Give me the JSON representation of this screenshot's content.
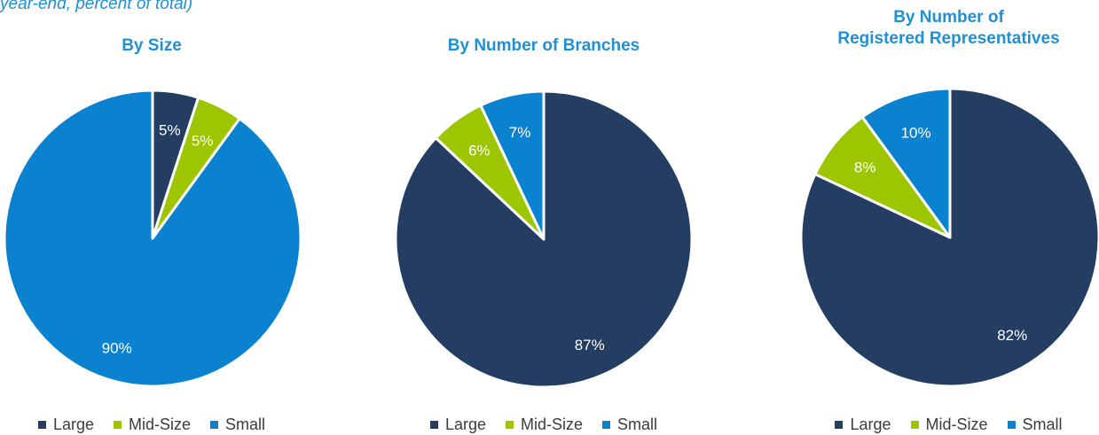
{
  "subtitle": "year-end, percent of total)",
  "colors": {
    "Large": "#233d63",
    "Mid-Size": "#9dc500",
    "Small": "#0a82d0"
  },
  "chart_data": [
    {
      "type": "pie",
      "title": "By Size",
      "categories": [
        "Large",
        "Mid-Size",
        "Small"
      ],
      "values": [
        5,
        5,
        90
      ],
      "labels": [
        "5%",
        "5%",
        "90%"
      ],
      "legend": [
        "Large",
        "Mid-Size",
        "Small"
      ]
    },
    {
      "type": "pie",
      "title": "By Number of Branches",
      "categories": [
        "Large",
        "Mid-Size",
        "Small"
      ],
      "values": [
        87,
        6,
        7
      ],
      "labels": [
        "87%",
        "6%",
        "7%"
      ],
      "legend": [
        "Large",
        "Mid-Size",
        "Small"
      ]
    },
    {
      "type": "pie",
      "title": "By Number of\nRegistered Representatives",
      "title_lines": [
        "By Number of",
        "Registered Representatives"
      ],
      "categories": [
        "Large",
        "Mid-Size",
        "Small"
      ],
      "values": [
        82,
        8,
        10
      ],
      "labels": [
        "82%",
        "8%",
        "10%"
      ],
      "legend": [
        "Large",
        "Mid-Size",
        "Small"
      ]
    }
  ]
}
